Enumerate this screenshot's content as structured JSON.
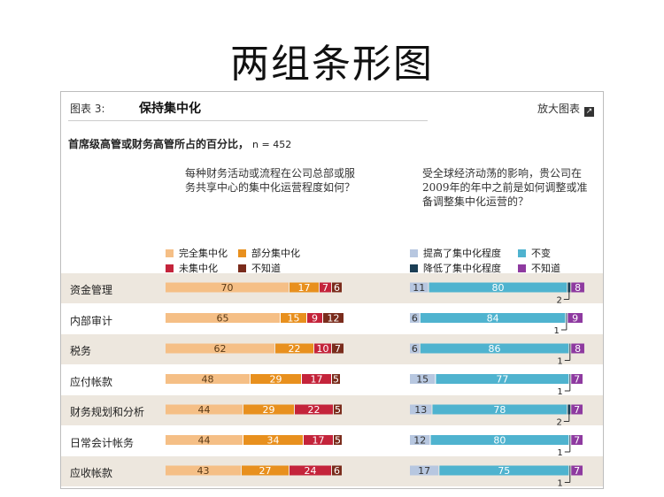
{
  "page_title": "两组条形图",
  "header": {
    "chart_label": "图表 3:",
    "chart_title": "保持集中化",
    "enlarge_label": "放大图表"
  },
  "subtitle": "首席级高管或财务高管所占的百分比，",
  "sample": "n = 452",
  "questions": {
    "left": "每种财务活动或流程在公司总部或服务共享中心的集中化运营程度如何？",
    "right": "受全球经济动荡的影响，贵公司在2009年的年中之前是如何调整或准备调整集中化运营的？"
  },
  "colors": {
    "left": [
      "#f5bf86",
      "#e8901e",
      "#c4243b",
      "#7a2c1c"
    ],
    "right": [
      "#b7c7e0",
      "#4fb3cf",
      "#1b3e55",
      "#8e3aa0"
    ],
    "band": "#ede7de"
  },
  "chart_data": [
    {
      "type": "bar",
      "orientation": "horizontal",
      "stacked": true,
      "categories": [
        "资金管理",
        "内部审计",
        "税务",
        "应付帐款",
        "财务规划和分析",
        "日常会计帐务",
        "应收帐款"
      ],
      "series": [
        {
          "name": "完全集中化",
          "values": [
            70,
            65,
            62,
            48,
            44,
            44,
            43
          ]
        },
        {
          "name": "部分集中化",
          "values": [
            17,
            15,
            22,
            29,
            29,
            34,
            27
          ]
        },
        {
          "name": "未集中化",
          "values": [
            7,
            9,
            10,
            17,
            22,
            17,
            24
          ]
        },
        {
          "name": "不知道",
          "values": [
            6,
            12,
            7,
            5,
            5,
            5,
            6
          ]
        }
      ]
    },
    {
      "type": "bar",
      "orientation": "horizontal",
      "stacked": true,
      "categories": [
        "资金管理",
        "内部审计",
        "税务",
        "应付帐款",
        "财务规划和分析",
        "日常会计帐务",
        "应收帐款"
      ],
      "series": [
        {
          "name": "提高了集中化程度",
          "values": [
            11,
            6,
            6,
            15,
            13,
            12,
            17
          ]
        },
        {
          "name": "不变",
          "values": [
            80,
            84,
            86,
            77,
            78,
            80,
            75
          ]
        },
        {
          "name": "降低了集中化程度",
          "values": [
            2,
            1,
            1,
            1,
            2,
            1,
            1
          ]
        },
        {
          "name": "不知道",
          "values": [
            8,
            9,
            8,
            7,
            7,
            7,
            7
          ]
        }
      ]
    }
  ]
}
